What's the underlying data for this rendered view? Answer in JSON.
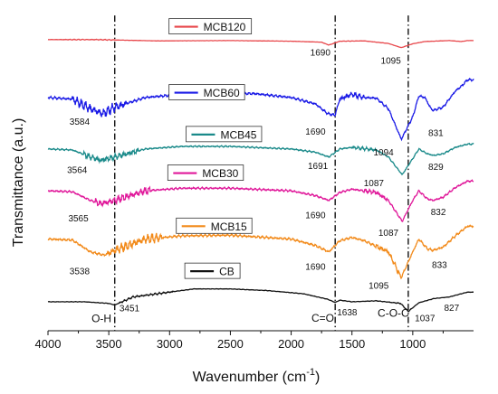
{
  "chart_data": {
    "type": "line",
    "xlabel_main": "Wavenumber (cm",
    "xlabel_sup": "-1",
    "xlabel_end": ")",
    "ylabel": "Transmittance (a.u.)",
    "xlim": [
      4000,
      500
    ],
    "xticks": [
      4000,
      3500,
      3000,
      2500,
      2000,
      1500,
      1000
    ],
    "xtick_labels": [
      "4000",
      "3500",
      "3000",
      "2500",
      "2000",
      "1500",
      "1000"
    ],
    "reference_lines": [
      3451,
      1638,
      1037
    ],
    "group_labels": [
      {
        "text": "O-H",
        "x": 3560,
        "y": 2.6
      },
      {
        "text": "C=O",
        "x": 1740,
        "y": 2.8
      },
      {
        "text": "C-O-C",
        "x": 1160,
        "y": 4.4
      }
    ],
    "series": [
      {
        "name": "MCB120",
        "color": "#e8474b",
        "offset": 90.5,
        "noise": 0.15,
        "points": [
          [
            4000,
            0
          ],
          [
            3600,
            0
          ],
          [
            3100,
            0.4
          ],
          [
            2500,
            0.3
          ],
          [
            2000,
            0.5
          ],
          [
            1750,
            0.8
          ],
          [
            1690,
            1.7
          ],
          [
            1600,
            0.5
          ],
          [
            1400,
            0.4
          ],
          [
            1200,
            1.2
          ],
          [
            1095,
            2.5
          ],
          [
            1000,
            1.3
          ],
          [
            900,
            0.6
          ],
          [
            700,
            0.3
          ],
          [
            600,
            0.6
          ],
          [
            550,
            0.3
          ]
        ],
        "labels": [
          {
            "text": "1690",
            "x": 1760,
            "y": 5.0
          },
          {
            "text": "1095",
            "x": 1180,
            "y": 7.5
          }
        ],
        "legend_x": 2960,
        "legend_y": -4
      },
      {
        "name": "MCB60",
        "color": "#1a1ae6",
        "offset": 72.5,
        "noise": 1.6,
        "points": [
          [
            4000,
            0
          ],
          [
            3800,
            0.5
          ],
          [
            3650,
            3.5
          ],
          [
            3550,
            5.0
          ],
          [
            3450,
            3.0
          ],
          [
            3200,
            0
          ],
          [
            2900,
            -1.0
          ],
          [
            2600,
            -1.3
          ],
          [
            2300,
            -1.2
          ],
          [
            2000,
            0
          ],
          [
            1800,
            2.0
          ],
          [
            1700,
            5.0
          ],
          [
            1640,
            5.5
          ],
          [
            1600,
            0.5
          ],
          [
            1500,
            -1.0
          ],
          [
            1400,
            0
          ],
          [
            1300,
            0.2
          ],
          [
            1200,
            3.5
          ],
          [
            1094,
            13.0
          ],
          [
            1000,
            6.0
          ],
          [
            950,
            -0.5
          ],
          [
            900,
            0
          ],
          [
            850,
            3.5
          ],
          [
            831,
            4.0
          ],
          [
            750,
            3.0
          ],
          [
            650,
            -2.0
          ],
          [
            600,
            -3.5
          ],
          [
            550,
            -5.5
          ]
        ],
        "labels": [
          {
            "text": "3584",
            "x": 3740,
            "y": 8.5
          },
          {
            "text": "1690",
            "x": 1800,
            "y": 11.5
          },
          {
            "text": "1094",
            "x": 1240,
            "y": 18.0
          },
          {
            "text": "831",
            "x": 810,
            "y": 12.0
          }
        ],
        "legend_x": 2960,
        "legend_y": -1.5
      },
      {
        "name": "MCB45",
        "color": "#1a8a8a",
        "offset": 56.5,
        "noise": 1.0,
        "points": [
          [
            4000,
            0
          ],
          [
            3800,
            0.3
          ],
          [
            3650,
            2.5
          ],
          [
            3564,
            3.5
          ],
          [
            3450,
            2.5
          ],
          [
            3200,
            0
          ],
          [
            2900,
            -0.8
          ],
          [
            2500,
            -0.8
          ],
          [
            2000,
            0
          ],
          [
            1800,
            1.0
          ],
          [
            1691,
            2.5
          ],
          [
            1600,
            0
          ],
          [
            1500,
            -0.5
          ],
          [
            1300,
            0.3
          ],
          [
            1200,
            2.5
          ],
          [
            1087,
            8.0
          ],
          [
            1000,
            3.0
          ],
          [
            950,
            0
          ],
          [
            880,
            1.5
          ],
          [
            829,
            2.0
          ],
          [
            750,
            1.5
          ],
          [
            650,
            -0.5
          ],
          [
            550,
            -1.5
          ]
        ],
        "labels": [
          {
            "text": "3564",
            "x": 3760,
            "y": 7.5
          },
          {
            "text": "1691",
            "x": 1780,
            "y": 6.2
          },
          {
            "text": "1087",
            "x": 1320,
            "y": 11.5
          },
          {
            "text": "829",
            "x": 810,
            "y": 6.5
          }
        ],
        "legend_x": 2820,
        "legend_y": -4.5
      },
      {
        "name": "MCB30",
        "color": "#e0189a",
        "offset": 43.5,
        "noise": 1.3,
        "points": [
          [
            4000,
            0
          ],
          [
            3800,
            0.3
          ],
          [
            3650,
            3.0
          ],
          [
            3565,
            4.0
          ],
          [
            3450,
            3.0
          ],
          [
            3200,
            0
          ],
          [
            2900,
            -0.8
          ],
          [
            2500,
            -0.8
          ],
          [
            2000,
            0
          ],
          [
            1800,
            1.5
          ],
          [
            1690,
            3.0
          ],
          [
            1600,
            0.5
          ],
          [
            1500,
            -0.5
          ],
          [
            1300,
            0.5
          ],
          [
            1200,
            3.0
          ],
          [
            1087,
            9.5
          ],
          [
            1000,
            3.0
          ],
          [
            950,
            0
          ],
          [
            880,
            2.5
          ],
          [
            832,
            3.0
          ],
          [
            750,
            2.0
          ],
          [
            650,
            -1.0
          ],
          [
            550,
            -3.0
          ]
        ],
        "labels": [
          {
            "text": "3565",
            "x": 3750,
            "y": 9.5
          },
          {
            "text": "1690",
            "x": 1800,
            "y": 8.5
          },
          {
            "text": "1087",
            "x": 1200,
            "y": 14.0
          },
          {
            "text": "832",
            "x": 790,
            "y": 7.5
          }
        ],
        "legend_x": 2970,
        "legend_y": -5.5
      },
      {
        "name": "MCB15",
        "color": "#f28a1a",
        "offset": 28.5,
        "noise": 1.6,
        "points": [
          [
            4000,
            0
          ],
          [
            3800,
            0.3
          ],
          [
            3650,
            4.0
          ],
          [
            3538,
            5.0
          ],
          [
            3450,
            3.5
          ],
          [
            3200,
            0
          ],
          [
            2900,
            -1.0
          ],
          [
            2500,
            -1.2
          ],
          [
            2000,
            0
          ],
          [
            1800,
            2.0
          ],
          [
            1690,
            4.0
          ],
          [
            1600,
            0.5
          ],
          [
            1500,
            -0.5
          ],
          [
            1400,
            0.5
          ],
          [
            1200,
            4.0
          ],
          [
            1095,
            12.0
          ],
          [
            1000,
            4.0
          ],
          [
            950,
            0
          ],
          [
            880,
            3.0
          ],
          [
            833,
            3.5
          ],
          [
            750,
            2.5
          ],
          [
            650,
            -1.0
          ],
          [
            550,
            -4.0
          ]
        ],
        "labels": [
          {
            "text": "3538",
            "x": 3740,
            "y": 11.0
          },
          {
            "text": "1690",
            "x": 1800,
            "y": 9.5
          },
          {
            "text": "1095",
            "x": 1280,
            "y": 15.5
          },
          {
            "text": "833",
            "x": 780,
            "y": 9.0
          }
        ],
        "legend_x": 2900,
        "legend_y": -4.0
      },
      {
        "name": "CB",
        "color": "#111111",
        "offset": 9.0,
        "noise": 0.3,
        "points": [
          [
            4000,
            0
          ],
          [
            3700,
            0
          ],
          [
            3500,
            0.5
          ],
          [
            3451,
            1.0
          ],
          [
            3300,
            -1.5
          ],
          [
            3000,
            -3.0
          ],
          [
            2800,
            -4.0
          ],
          [
            2500,
            -4.0
          ],
          [
            2200,
            -3.5
          ],
          [
            1900,
            -2.5
          ],
          [
            1700,
            -0.8
          ],
          [
            1638,
            0.2
          ],
          [
            1600,
            -0.5
          ],
          [
            1500,
            0
          ],
          [
            1300,
            -0.3
          ],
          [
            1100,
            0.5
          ],
          [
            1037,
            3.0
          ],
          [
            950,
            0.3
          ],
          [
            827,
            -1.0
          ],
          [
            700,
            -1.5
          ],
          [
            600,
            -2.5
          ],
          [
            550,
            -3.0
          ]
        ],
        "labels": [
          {
            "text": "3451",
            "x": 3330,
            "y": 3.0
          },
          {
            "text": "1638",
            "x": 1540,
            "y": 4.2
          },
          {
            "text": "1037",
            "x": 900,
            "y": 6.0
          },
          {
            "text": "827",
            "x": 680,
            "y": 2.8
          }
        ],
        "legend_x": 2830,
        "legend_y": -9.5
      }
    ]
  }
}
